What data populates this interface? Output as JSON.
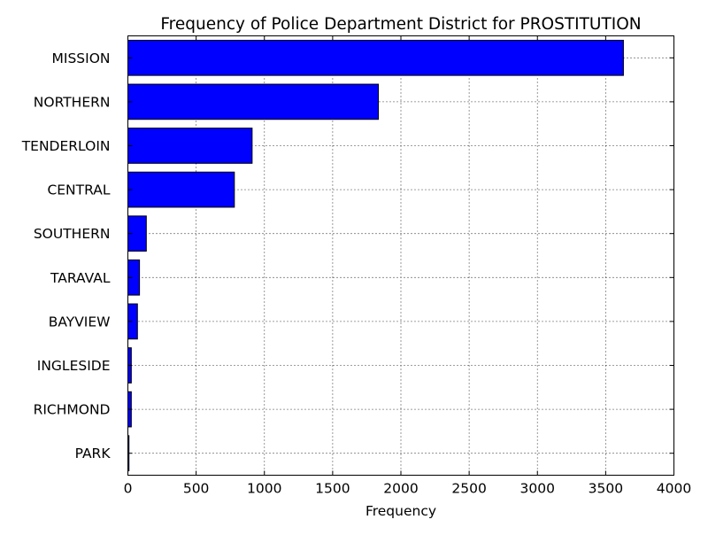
{
  "chart_data": {
    "type": "bar",
    "orientation": "horizontal",
    "title": "Frequency of Police Department District for PROSTITUTION",
    "xlabel": "Frequency",
    "ylabel": "",
    "categories": [
      "MISSION",
      "NORTHERN",
      "TENDERLOIN",
      "CENTRAL",
      "SOUTHERN",
      "TARAVAL",
      "BAYVIEW",
      "INGLESIDE",
      "RICHMOND",
      "PARK"
    ],
    "values": [
      3630,
      1835,
      910,
      780,
      135,
      85,
      70,
      25,
      25,
      8
    ],
    "xlim": [
      0,
      4000
    ],
    "xticks": [
      0,
      500,
      1000,
      1500,
      2000,
      2500,
      3000,
      3500,
      4000
    ],
    "grid": true,
    "bar_color": "#0000ff",
    "edge_color": "#000000"
  }
}
